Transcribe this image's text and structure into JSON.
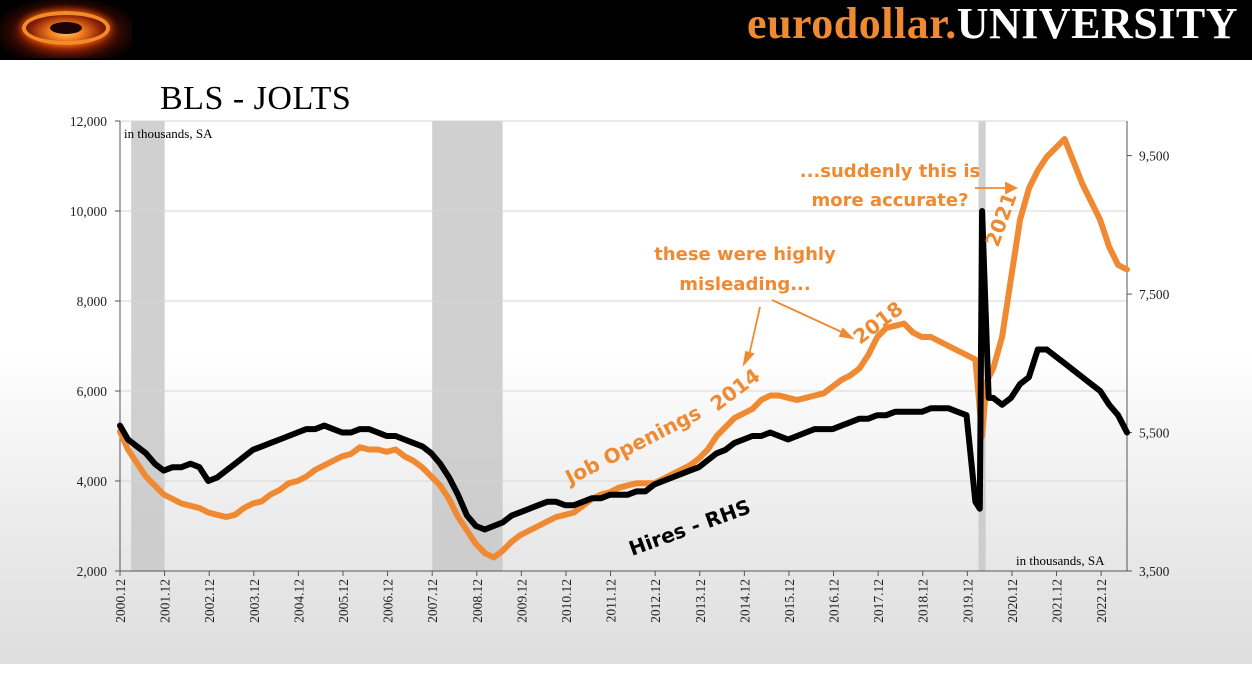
{
  "header": {
    "brand_part1": "eurodollar.",
    "brand_part2": "UNIVERSITY",
    "logo_icon": "black-hole-logo-icon"
  },
  "colors": {
    "orange": "#f08a32",
    "black": "#000000",
    "recession": "#c8c8c8"
  },
  "chart_data": {
    "type": "line",
    "title": "BLS - JOLTS",
    "unit_left": "in thousands, SA",
    "unit_right": "in thousands, SA",
    "ylim_left": [
      2000,
      12000
    ],
    "ylim_right": [
      3500,
      10000
    ],
    "yticks_left": [
      "12,000",
      "10,000",
      "8,000",
      "6,000",
      "4,000",
      "2,000"
    ],
    "yticks_left_values": [
      12000,
      10000,
      8000,
      6000,
      4000,
      2000
    ],
    "yticks_right": [
      "9,500",
      "7,500",
      "5,500",
      "3,500"
    ],
    "yticks_right_values": [
      9500,
      7500,
      5500,
      3500
    ],
    "x_range": [
      2000.92,
      2023.5
    ],
    "xticks": [
      "2000.12",
      "2001.12",
      "2002.12",
      "2003.12",
      "2004.12",
      "2005.12",
      "2006.12",
      "2007.12",
      "2008.12",
      "2009.12",
      "2010.12",
      "2011.12",
      "2012.12",
      "2013.12",
      "2014.12",
      "2015.12",
      "2016.12",
      "2017.12",
      "2018.12",
      "2019.12",
      "2020.12",
      "2021.12",
      "2022.12"
    ],
    "xticks_values": [
      2000.92,
      2001.92,
      2002.92,
      2003.92,
      2004.92,
      2005.92,
      2006.92,
      2007.92,
      2008.92,
      2009.92,
      2010.92,
      2011.92,
      2012.92,
      2013.92,
      2014.92,
      2015.92,
      2016.92,
      2017.92,
      2018.92,
      2019.92,
      2020.92,
      2021.92,
      2022.92
    ],
    "recessions": [
      [
        2001.17,
        2001.92
      ],
      [
        2007.92,
        2009.5
      ],
      [
        2020.17,
        2020.33
      ]
    ],
    "series": [
      {
        "name": "Job Openings",
        "axis": "left",
        "color": "#f08a32",
        "x": [
          2000.92,
          2001.1,
          2001.3,
          2001.5,
          2001.7,
          2001.9,
          2002.1,
          2002.3,
          2002.5,
          2002.7,
          2002.9,
          2003.1,
          2003.3,
          2003.5,
          2003.7,
          2003.9,
          2004.1,
          2004.3,
          2004.5,
          2004.7,
          2004.9,
          2005.1,
          2005.3,
          2005.5,
          2005.7,
          2005.9,
          2006.1,
          2006.3,
          2006.5,
          2006.7,
          2006.9,
          2007.1,
          2007.3,
          2007.5,
          2007.7,
          2007.9,
          2008.1,
          2008.3,
          2008.5,
          2008.7,
          2008.9,
          2009.1,
          2009.3,
          2009.5,
          2009.7,
          2009.9,
          2010.1,
          2010.3,
          2010.5,
          2010.7,
          2010.9,
          2011.1,
          2011.3,
          2011.5,
          2011.7,
          2011.9,
          2012.1,
          2012.3,
          2012.5,
          2012.7,
          2012.9,
          2013.1,
          2013.3,
          2013.5,
          2013.7,
          2013.9,
          2014.1,
          2014.3,
          2014.5,
          2014.7,
          2014.9,
          2015.1,
          2015.3,
          2015.5,
          2015.7,
          2015.9,
          2016.1,
          2016.3,
          2016.5,
          2016.7,
          2016.9,
          2017.1,
          2017.3,
          2017.5,
          2017.7,
          2017.9,
          2018.1,
          2018.3,
          2018.5,
          2018.7,
          2018.9,
          2019.1,
          2019.3,
          2019.5,
          2019.7,
          2019.9,
          2020.1,
          2020.25,
          2020.35,
          2020.5,
          2020.7,
          2020.9,
          2021.1,
          2021.3,
          2021.5,
          2021.7,
          2021.9,
          2022.1,
          2022.3,
          2022.5,
          2022.7,
          2022.9,
          2023.1,
          2023.3,
          2023.5
        ],
        "values": [
          5100,
          4700,
          4400,
          4100,
          3900,
          3700,
          3600,
          3500,
          3450,
          3400,
          3300,
          3250,
          3200,
          3250,
          3400,
          3500,
          3550,
          3700,
          3800,
          3950,
          4000,
          4100,
          4250,
          4350,
          4450,
          4550,
          4600,
          4750,
          4700,
          4700,
          4650,
          4700,
          4550,
          4450,
          4300,
          4100,
          3900,
          3600,
          3200,
          2900,
          2600,
          2400,
          2300,
          2450,
          2650,
          2800,
          2900,
          3000,
          3100,
          3200,
          3250,
          3300,
          3450,
          3600,
          3700,
          3750,
          3850,
          3900,
          3950,
          3950,
          3950,
          4050,
          4150,
          4250,
          4350,
          4500,
          4700,
          5000,
          5200,
          5400,
          5500,
          5600,
          5800,
          5900,
          5900,
          5850,
          5800,
          5850,
          5900,
          5950,
          6100,
          6250,
          6350,
          6500,
          6800,
          7200,
          7400,
          7450,
          7500,
          7300,
          7200,
          7200,
          7100,
          7000,
          6900,
          6800,
          6700,
          5000,
          6200,
          6500,
          7200,
          8500,
          9800,
          10500,
          10900,
          11200,
          11400,
          11600,
          11100,
          10600,
          10200,
          9800,
          9200,
          8800,
          8700
        ],
        "label": "Job Openings"
      },
      {
        "name": "Hires - RHS",
        "axis": "right",
        "color": "#000000",
        "x": [
          2000.92,
          2001.1,
          2001.3,
          2001.5,
          2001.7,
          2001.9,
          2002.1,
          2002.3,
          2002.5,
          2002.7,
          2002.9,
          2003.1,
          2003.3,
          2003.5,
          2003.7,
          2003.9,
          2004.1,
          2004.3,
          2004.5,
          2004.7,
          2004.9,
          2005.1,
          2005.3,
          2005.5,
          2005.7,
          2005.9,
          2006.1,
          2006.3,
          2006.5,
          2006.7,
          2006.9,
          2007.1,
          2007.3,
          2007.5,
          2007.7,
          2007.9,
          2008.1,
          2008.3,
          2008.5,
          2008.7,
          2008.9,
          2009.1,
          2009.3,
          2009.5,
          2009.7,
          2009.9,
          2010.1,
          2010.3,
          2010.5,
          2010.7,
          2010.9,
          2011.1,
          2011.3,
          2011.5,
          2011.7,
          2011.9,
          2012.1,
          2012.3,
          2012.5,
          2012.7,
          2012.9,
          2013.1,
          2013.3,
          2013.5,
          2013.7,
          2013.9,
          2014.1,
          2014.3,
          2014.5,
          2014.7,
          2014.9,
          2015.1,
          2015.3,
          2015.5,
          2015.7,
          2015.9,
          2016.1,
          2016.3,
          2016.5,
          2016.7,
          2016.9,
          2017.1,
          2017.3,
          2017.5,
          2017.7,
          2017.9,
          2018.1,
          2018.3,
          2018.5,
          2018.7,
          2018.9,
          2019.1,
          2019.3,
          2019.5,
          2019.7,
          2019.9,
          2020.1,
          2020.2,
          2020.25,
          2020.3,
          2020.4,
          2020.5,
          2020.7,
          2020.9,
          2021.1,
          2021.3,
          2021.5,
          2021.7,
          2021.9,
          2022.1,
          2022.3,
          2022.5,
          2022.7,
          2022.9,
          2023.1,
          2023.3,
          2023.5
        ],
        "values": [
          5600,
          5400,
          5300,
          5200,
          5050,
          4950,
          5000,
          5000,
          5050,
          5000,
          4800,
          4850,
          4950,
          5050,
          5150,
          5250,
          5300,
          5350,
          5400,
          5450,
          5500,
          5550,
          5550,
          5600,
          5550,
          5500,
          5500,
          5550,
          5550,
          5500,
          5450,
          5450,
          5400,
          5350,
          5300,
          5200,
          5050,
          4850,
          4600,
          4300,
          4150,
          4100,
          4150,
          4200,
          4300,
          4350,
          4400,
          4450,
          4500,
          4500,
          4450,
          4450,
          4500,
          4550,
          4550,
          4600,
          4600,
          4600,
          4650,
          4650,
          4750,
          4800,
          4850,
          4900,
          4950,
          5000,
          5100,
          5200,
          5250,
          5350,
          5400,
          5450,
          5450,
          5500,
          5450,
          5400,
          5450,
          5500,
          5550,
          5550,
          5550,
          5600,
          5650,
          5700,
          5700,
          5750,
          5750,
          5800,
          5800,
          5800,
          5800,
          5850,
          5850,
          5850,
          5800,
          5750,
          4500,
          4400,
          8700,
          7800,
          6000,
          6000,
          5900,
          6000,
          6200,
          6300,
          6700,
          6700,
          6600,
          6500,
          6400,
          6300,
          6200,
          6100,
          5900,
          5750,
          5500
        ],
        "label": "Hires - RHS"
      }
    ],
    "annotations": [
      {
        "text": "Job Openings",
        "color": "orange"
      },
      {
        "text": "Hires - RHS",
        "color": "black"
      },
      {
        "text": "2014",
        "color": "orange"
      },
      {
        "text": "2018",
        "color": "orange"
      },
      {
        "text": "2021",
        "color": "orange"
      },
      {
        "text": "these were highly",
        "color": "orange"
      },
      {
        "text": "misleading...",
        "color": "orange"
      },
      {
        "text": "...suddenly this is",
        "color": "orange"
      },
      {
        "text": "more accurate?",
        "color": "orange"
      }
    ]
  }
}
